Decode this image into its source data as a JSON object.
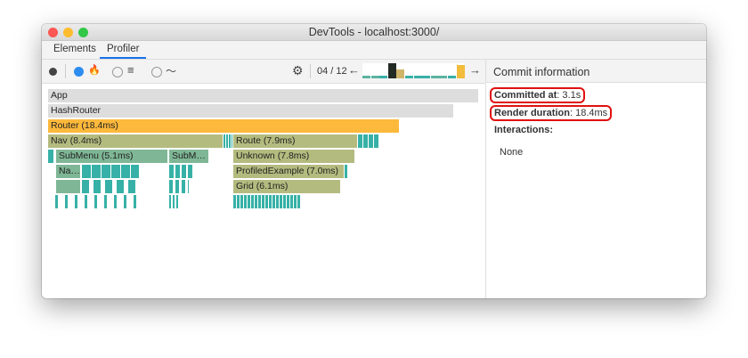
{
  "window": {
    "title": "DevTools - localhost:3000/"
  },
  "tabs": [
    {
      "label": "Elements"
    },
    {
      "label": "Profiler",
      "active": true
    }
  ],
  "toolbar": {
    "commit_counter": "04 / 12",
    "prev_icon": "arrow-left-icon",
    "next_icon": "arrow-right-icon",
    "commit_bars": [
      {
        "level": 0.2,
        "color": "#5db3a0"
      },
      {
        "level": 0.2,
        "color": "#5db3a0"
      },
      {
        "level": 0.2,
        "color": "#3ab0a6"
      },
      {
        "level": 1.0,
        "color": "#232a24",
        "selected": true
      },
      {
        "level": 0.6,
        "color": "#d0b46a"
      },
      {
        "level": 0.2,
        "color": "#3ab0a6"
      },
      {
        "level": 0.2,
        "color": "#3ab0a6"
      },
      {
        "level": 0.2,
        "color": "#3ab0a6"
      },
      {
        "level": 0.2,
        "color": "#5db3a0"
      },
      {
        "level": 0.2,
        "color": "#5db3a0"
      },
      {
        "level": 0.2,
        "color": "#3ab0a6"
      },
      {
        "level": 0.9,
        "color": "#f2bc3c"
      }
    ]
  },
  "flame": {
    "app": "App",
    "hashrouter": "HashRouter",
    "router": "Router (18.4ms)",
    "nav": "Nav (8.4ms)",
    "route": "Route (7.9ms)",
    "submenu": "SubMenu (5.1ms)",
    "subm": "SubM…",
    "unknown": "Unknown (7.8ms)",
    "na": "Na…",
    "profiled": "ProfiledExample (7.0ms)",
    "grid": "Grid (6.1ms)"
  },
  "commit_info": {
    "header": "Commit information",
    "committed_label": "Committed at",
    "committed_value": "3.1s",
    "duration_label": "Render duration",
    "duration_value": "18.4ms",
    "interactions_label": "Interactions:",
    "interactions_value": "None"
  }
}
